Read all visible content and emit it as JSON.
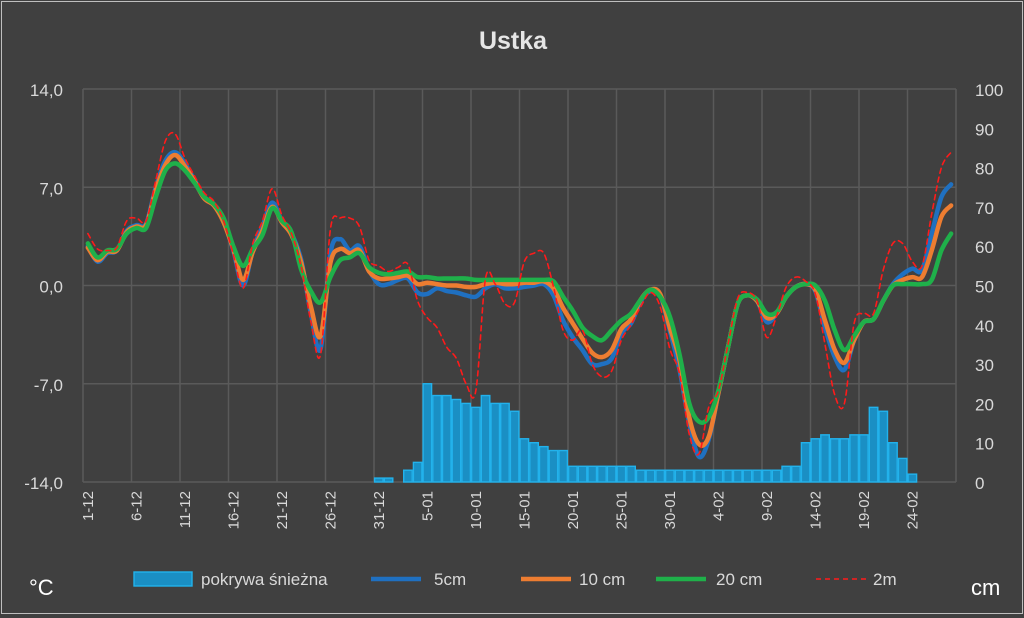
{
  "chart_data": {
    "type": "line",
    "title": "Ustka",
    "ylabel_left": "°C",
    "ylabel_right": "cm",
    "ylim_left": [
      -14,
      14
    ],
    "yticks_left": [
      "14,0",
      "7,0",
      "0,0",
      "-7,0",
      "-14,0"
    ],
    "ylim_right": [
      0,
      100
    ],
    "yticks_right": [
      "100",
      "90",
      "80",
      "70",
      "60",
      "50",
      "40",
      "30",
      "20",
      "10",
      "0"
    ],
    "x_start": "1-12",
    "x_end": "28-02",
    "x_count": 90,
    "xtick_labels": [
      "1-12",
      "6-12",
      "11-12",
      "16-12",
      "21-12",
      "26-12",
      "31-12",
      "5-01",
      "10-01",
      "15-01",
      "20-01",
      "25-01",
      "30-01",
      "4-02",
      "9-02",
      "14-02",
      "19-02",
      "24-02"
    ],
    "grid": true,
    "legend_position": "bottom",
    "colors": {
      "snow": "#1e9fd8",
      "t5": "#1f70c1",
      "t10": "#ed7d31",
      "t20": "#1fb04a",
      "t2m": "#ff1a1a",
      "grid": "#5a5a5a"
    },
    "series": [
      {
        "name": "pokrywa śnieżna",
        "type": "bar",
        "axis": "right",
        "values": [
          0,
          0,
          0,
          0,
          0,
          0,
          0,
          0,
          0,
          0,
          0,
          0,
          0,
          0,
          0,
          0,
          0,
          0,
          0,
          0,
          0,
          0,
          0,
          0,
          0,
          0,
          0,
          0,
          0,
          0,
          1,
          1,
          0,
          3,
          5,
          25,
          22,
          22,
          21,
          20,
          19,
          22,
          20,
          20,
          18,
          11,
          10,
          9,
          8,
          8,
          4,
          4,
          4,
          4,
          4,
          4,
          4,
          3,
          3,
          3,
          3,
          3,
          3,
          3,
          3,
          3,
          3,
          3,
          3,
          3,
          3,
          3,
          4,
          4,
          10,
          11,
          12,
          11,
          11,
          12,
          12,
          19,
          18,
          10,
          6,
          2,
          0,
          0,
          0,
          0
        ]
      },
      {
        "name": "5cm",
        "type": "line",
        "axis": "left",
        "values": [
          2.8,
          1.7,
          2.3,
          2.5,
          3.9,
          4.3,
          4.4,
          7.0,
          8.9,
          9.5,
          8.7,
          7.5,
          6.3,
          5.8,
          4.6,
          2.5,
          0.0,
          2.5,
          4.2,
          5.9,
          4.6,
          3.7,
          1.8,
          -2.0,
          -4.5,
          2.3,
          3.3,
          2.5,
          2.8,
          1.1,
          0.1,
          0.1,
          0.4,
          0.5,
          -0.5,
          -0.6,
          -0.2,
          -0.4,
          -0.5,
          -0.7,
          -0.8,
          -0.2,
          0.1,
          -0.2,
          -0.2,
          -0.1,
          0.0,
          0.1,
          -0.7,
          -2.5,
          -3.7,
          -4.6,
          -5.6,
          -5.6,
          -5.2,
          -3.4,
          -2.7,
          -1.1,
          -0.4,
          -0.7,
          -3.2,
          -6.0,
          -9.8,
          -12.2,
          -11.0,
          -7.7,
          -4.4,
          -1.3,
          -0.7,
          -1.1,
          -2.6,
          -2.0,
          -0.8,
          -0.1,
          0.1,
          -0.4,
          -3.0,
          -5.1,
          -6.0,
          -3.9,
          -2.6,
          -2.4,
          -1.1,
          0.1,
          0.8,
          1.2,
          1.1,
          3.7,
          6.3,
          7.2
        ]
      },
      {
        "name": "10 cm",
        "type": "line",
        "axis": "left",
        "values": [
          2.7,
          1.8,
          2.4,
          2.5,
          3.8,
          4.2,
          4.3,
          6.8,
          8.6,
          9.3,
          8.5,
          7.4,
          6.2,
          5.7,
          4.5,
          2.6,
          0.4,
          2.4,
          3.9,
          5.6,
          4.5,
          3.6,
          1.6,
          -1.5,
          -3.6,
          1.6,
          2.6,
          2.3,
          2.5,
          1.0,
          0.5,
          0.5,
          0.6,
          0.7,
          0.1,
          0.2,
          0.1,
          0.0,
          0.0,
          -0.1,
          -0.1,
          0.1,
          0.2,
          0.1,
          0.1,
          0.2,
          0.2,
          0.3,
          -0.2,
          -1.6,
          -2.7,
          -3.8,
          -4.8,
          -5.1,
          -4.6,
          -3.1,
          -2.4,
          -1.0,
          -0.3,
          -0.6,
          -3.0,
          -5.3,
          -9.4,
          -11.3,
          -10.8,
          -7.7,
          -4.4,
          -1.3,
          -0.7,
          -1.1,
          -2.3,
          -2.0,
          -0.8,
          -0.1,
          0.1,
          -0.3,
          -2.5,
          -4.6,
          -5.5,
          -3.9,
          -2.6,
          -2.4,
          -1.1,
          0.0,
          0.4,
          0.6,
          0.6,
          2.5,
          4.9,
          5.7
        ]
      },
      {
        "name": "20 cm",
        "type": "line",
        "axis": "left",
        "values": [
          3.0,
          2.0,
          2.5,
          2.6,
          3.7,
          4.1,
          4.1,
          6.3,
          8.2,
          8.7,
          8.2,
          7.3,
          6.3,
          5.8,
          4.8,
          2.8,
          1.4,
          2.6,
          3.6,
          5.5,
          4.6,
          3.8,
          1.1,
          -0.4,
          -1.2,
          0.6,
          1.8,
          2.0,
          2.3,
          1.3,
          0.9,
          0.8,
          0.9,
          1.0,
          0.6,
          0.6,
          0.5,
          0.5,
          0.5,
          0.5,
          0.4,
          0.4,
          0.4,
          0.4,
          0.4,
          0.4,
          0.4,
          0.4,
          0.3,
          -0.8,
          -1.8,
          -3.0,
          -3.6,
          -3.9,
          -3.2,
          -2.5,
          -2.0,
          -1.0,
          -0.3,
          -0.8,
          -2.2,
          -4.9,
          -8.4,
          -9.7,
          -9.4,
          -7.5,
          -4.4,
          -1.3,
          -0.7,
          -1.0,
          -2.0,
          -1.9,
          -0.8,
          -0.1,
          0.1,
          0.0,
          -1.1,
          -3.2,
          -4.6,
          -3.6,
          -2.6,
          -2.4,
          -1.1,
          0.0,
          0.1,
          0.1,
          0.1,
          0.4,
          2.5,
          3.7
        ]
      },
      {
        "name": "2m",
        "type": "line",
        "style": "dashed",
        "axis": "left",
        "values": [
          3.7,
          2.6,
          2.5,
          2.7,
          4.6,
          4.8,
          4.6,
          7.5,
          10.3,
          10.8,
          9.1,
          7.8,
          6.6,
          6.0,
          4.6,
          2.2,
          -0.2,
          3.0,
          4.6,
          6.9,
          5.0,
          3.7,
          1.3,
          -2.6,
          -4.9,
          4.0,
          4.8,
          4.8,
          4.2,
          1.8,
          1.4,
          1.0,
          1.3,
          1.5,
          -1.1,
          -2.3,
          -3.0,
          -4.4,
          -5.2,
          -7.0,
          -7.5,
          0.5,
          0.1,
          -1.3,
          -1.2,
          1.7,
          2.3,
          2.3,
          -0.1,
          -3.2,
          -3.9,
          -3.2,
          -5.6,
          -6.5,
          -6.1,
          -3.9,
          -2.8,
          -1.5,
          -0.5,
          -1.5,
          -4.5,
          -6.3,
          -10.6,
          -12.0,
          -8.7,
          -7.5,
          -4.2,
          -0.9,
          -0.5,
          -1.1,
          -3.7,
          -2.2,
          -0.1,
          0.6,
          0.3,
          -0.6,
          -4.2,
          -7.8,
          -8.4,
          -2.7,
          -2.0,
          -2.0,
          1.1,
          3.0,
          3.0,
          1.7,
          1.4,
          5.1,
          8.4,
          9.5
        ]
      }
    ]
  }
}
